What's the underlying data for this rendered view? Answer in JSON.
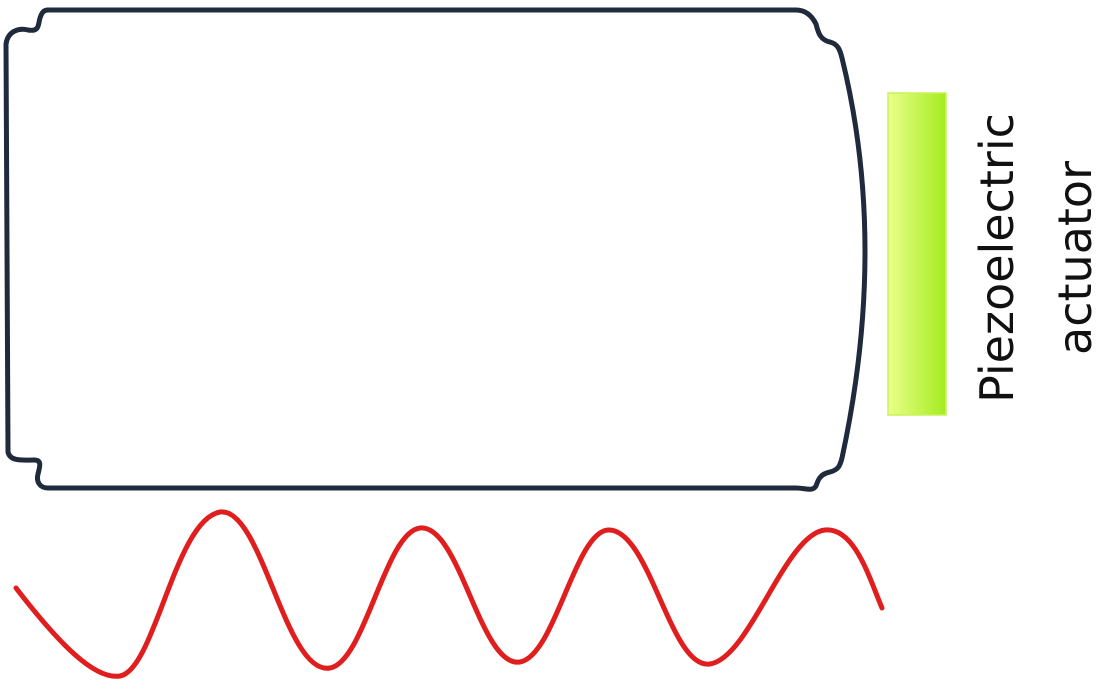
{
  "label": {
    "line1": "Piezoelectric",
    "line2": "actuator"
  },
  "colors": {
    "container_outline": "#1f2a3c",
    "actuator_fill_light": "#eaff8a",
    "actuator_fill_dark": "#a6ee22",
    "wave_stroke": "#e01e1e",
    "label_text": "#111111"
  }
}
